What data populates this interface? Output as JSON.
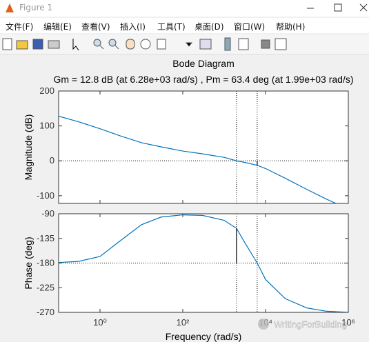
{
  "window": {
    "title": "Figure 1",
    "menu": [
      "文件(F)",
      "编辑(E)",
      "查看(V)",
      "插入(I)",
      "工具(T)",
      "桌面(D)",
      "窗口(W)",
      "帮助(H)"
    ]
  },
  "watermark": "WritingForBuilding",
  "chart_data": [
    {
      "type": "line",
      "title": "Bode Diagram",
      "subtitle": "Gm = 12.8 dB (at 6.28e+03 rad/s) ,  Pm = 63.4 deg (at 1.99e+03 rad/s)",
      "ylabel": "Magnitude (dB)",
      "xscale": "log",
      "xlim": [
        0.1,
        1000000
      ],
      "ylim": [
        -122,
        200
      ],
      "yticks": [
        -100,
        0,
        100,
        200
      ],
      "grid": false,
      "x": [
        0.1,
        0.3,
        1,
        3,
        10,
        30,
        100,
        300,
        1000,
        1990,
        3000,
        6280,
        10000,
        30000,
        100000,
        300000,
        500000
      ],
      "series": [
        {
          "color": "#0072bd",
          "values": [
            128,
            112,
            92,
            72,
            52,
            40,
            28,
            20,
            10,
            0,
            -4,
            -12.8,
            -22,
            -50,
            -82,
            -110,
            -122
          ]
        }
      ],
      "ref_lines": [
        {
          "axis": "y",
          "value": 0
        },
        {
          "axis": "x",
          "value": 1990
        },
        {
          "axis": "x",
          "value": 6280
        }
      ],
      "margin_lines": [
        {
          "x": 6280,
          "values": [
            0,
            -12.8
          ]
        }
      ]
    },
    {
      "type": "line",
      "ylabel": "Phase (deg)",
      "xlabel": "Frequency  (rad/s)",
      "xscale": "log",
      "xlim": [
        0.1,
        1000000
      ],
      "ylim": [
        -270,
        -90
      ],
      "xticks": [
        {
          "value": 1,
          "label": "10⁰"
        },
        {
          "value": 100,
          "label": "10²"
        },
        {
          "value": 10000,
          "label": "10⁴"
        },
        {
          "value": 1000000,
          "label": "10⁶"
        }
      ],
      "yticks": [
        -270,
        -225,
        -180,
        -135,
        -90
      ],
      "grid": false,
      "x": [
        0.1,
        0.3,
        1,
        3,
        10,
        30,
        100,
        300,
        1000,
        1990,
        3000,
        6280,
        10000,
        30000,
        100000,
        300000,
        1000000
      ],
      "series": [
        {
          "color": "#0072bd",
          "values": [
            -179,
            -177,
            -168,
            -140,
            -110,
            -96,
            -92,
            -93,
            -102,
            -116.6,
            -140,
            -180,
            -210,
            -245,
            -262,
            -268,
            -270
          ]
        }
      ],
      "ref_lines": [
        {
          "axis": "y",
          "value": -180
        },
        {
          "axis": "x",
          "value": 1990
        },
        {
          "axis": "x",
          "value": 6280
        }
      ],
      "margin_lines": [
        {
          "x": 1990,
          "values": [
            -180,
            -116.6
          ]
        }
      ]
    }
  ]
}
